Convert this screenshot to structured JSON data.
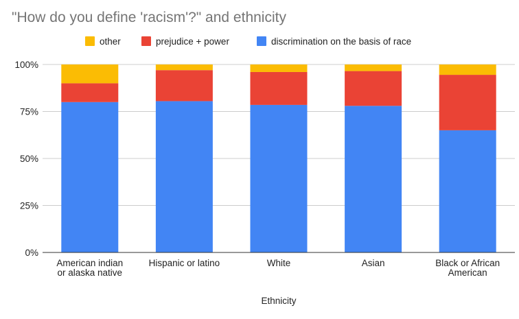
{
  "chart_data": {
    "type": "bar",
    "stacked": true,
    "percent_stacked": true,
    "title": "\"How do you define 'racism'?\" and ethnicity",
    "xlabel": "Ethnicity",
    "ylabel": "",
    "ylim": [
      0,
      100
    ],
    "y_ticks": [
      "0%",
      "25%",
      "50%",
      "75%",
      "100%"
    ],
    "y_tick_values": [
      0,
      25,
      50,
      75,
      100
    ],
    "grid": true,
    "legend_position": "top",
    "categories": [
      [
        "American indian",
        "or alaska native"
      ],
      [
        "Hispanic or latino"
      ],
      [
        "White"
      ],
      [
        "Asian"
      ],
      [
        "Black or African",
        "American"
      ]
    ],
    "series": [
      {
        "name": "discrimination on the basis of race",
        "color": "#4285f4",
        "values": [
          80,
          80.5,
          78.5,
          78,
          65
        ]
      },
      {
        "name": "prejudice + power",
        "color": "#ea4335",
        "values": [
          10,
          16.5,
          17.5,
          18.5,
          29.5
        ]
      },
      {
        "name": "other",
        "color": "#fbbc04",
        "values": [
          10,
          3,
          4,
          3.5,
          5.5
        ]
      }
    ],
    "legend_order": [
      "other",
      "prejudice + power",
      "discrimination on the basis of race"
    ]
  }
}
